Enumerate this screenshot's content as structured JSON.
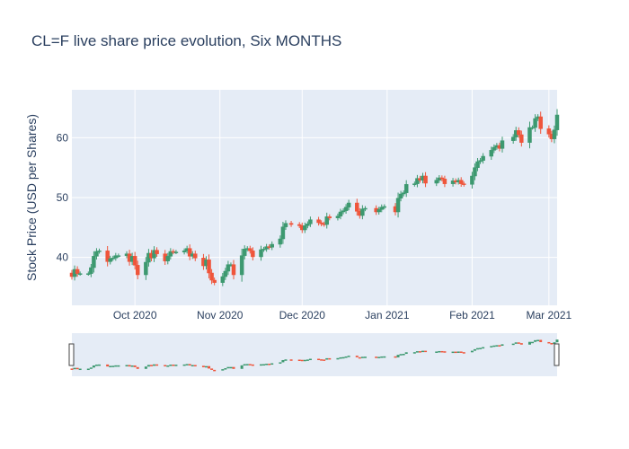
{
  "chart_data": {
    "type": "candlestick",
    "title": "CL=F live share price evolution, Six MONTHS",
    "xlabel": "",
    "ylabel": "Stock Price (USD per Shares)",
    "x_ticks": [
      "Oct 2020",
      "Nov 2020",
      "Dec 2020",
      "Jan 2021",
      "Feb 2021",
      "Mar 2021"
    ],
    "x_tick_dates": [
      "2020-10-01",
      "2020-11-01",
      "2020-12-01",
      "2021-01-01",
      "2021-02-01",
      "2021-03-01"
    ],
    "xlim": [
      "2020-09-08",
      "2021-03-04"
    ],
    "y_ticks": [
      40,
      50,
      60
    ],
    "ylim": [
      32,
      68
    ],
    "grid": true,
    "rangeslider": true,
    "colors": {
      "increasing": "#3d9970",
      "decreasing": "#ef553b",
      "plot_bg": "#e5ecf6",
      "grid": "#ffffff"
    },
    "dates": [
      "2020-09-08",
      "2020-09-09",
      "2020-09-10",
      "2020-09-11",
      "2020-09-14",
      "2020-09-15",
      "2020-09-16",
      "2020-09-17",
      "2020-09-18",
      "2020-09-21",
      "2020-09-22",
      "2020-09-23",
      "2020-09-24",
      "2020-09-25",
      "2020-09-28",
      "2020-09-29",
      "2020-09-30",
      "2020-10-01",
      "2020-10-02",
      "2020-10-05",
      "2020-10-06",
      "2020-10-07",
      "2020-10-08",
      "2020-10-09",
      "2020-10-12",
      "2020-10-13",
      "2020-10-14",
      "2020-10-15",
      "2020-10-16",
      "2020-10-19",
      "2020-10-20",
      "2020-10-21",
      "2020-10-22",
      "2020-10-23",
      "2020-10-26",
      "2020-10-27",
      "2020-10-28",
      "2020-10-29",
      "2020-10-30",
      "2020-11-02",
      "2020-11-03",
      "2020-11-04",
      "2020-11-05",
      "2020-11-06",
      "2020-11-09",
      "2020-11-10",
      "2020-11-11",
      "2020-11-12",
      "2020-11-13",
      "2020-11-16",
      "2020-11-17",
      "2020-11-18",
      "2020-11-19",
      "2020-11-20",
      "2020-11-23",
      "2020-11-24",
      "2020-11-25",
      "2020-11-27",
      "2020-11-30",
      "2020-12-01",
      "2020-12-02",
      "2020-12-03",
      "2020-12-04",
      "2020-12-07",
      "2020-12-08",
      "2020-12-09",
      "2020-12-10",
      "2020-12-11",
      "2020-12-14",
      "2020-12-15",
      "2020-12-16",
      "2020-12-17",
      "2020-12-18",
      "2020-12-21",
      "2020-12-22",
      "2020-12-23",
      "2020-12-24",
      "2020-12-28",
      "2020-12-29",
      "2020-12-30",
      "2020-12-31",
      "2021-01-04",
      "2021-01-05",
      "2021-01-06",
      "2021-01-07",
      "2021-01-08",
      "2021-01-11",
      "2021-01-12",
      "2021-01-13",
      "2021-01-14",
      "2021-01-15",
      "2021-01-19",
      "2021-01-20",
      "2021-01-21",
      "2021-01-22",
      "2021-01-25",
      "2021-01-26",
      "2021-01-27",
      "2021-01-28",
      "2021-01-29",
      "2021-02-01",
      "2021-02-02",
      "2021-02-03",
      "2021-02-04",
      "2021-02-05",
      "2021-02-08",
      "2021-02-09",
      "2021-02-10",
      "2021-02-11",
      "2021-02-12",
      "2021-02-16",
      "2021-02-17",
      "2021-02-18",
      "2021-02-19",
      "2021-02-22",
      "2021-02-23",
      "2021-02-24",
      "2021-02-25",
      "2021-02-26",
      "2021-03-01",
      "2021-03-02",
      "2021-03-03",
      "2021-03-04"
    ],
    "close": [
      36.8,
      38.0,
      37.3,
      37.3,
      37.3,
      38.3,
      40.2,
      41.0,
      41.1,
      39.3,
      39.8,
      39.9,
      40.3,
      40.3,
      40.6,
      39.3,
      40.2,
      38.7,
      37.1,
      39.2,
      40.7,
      39.9,
      41.2,
      40.6,
      39.4,
      40.2,
      41.0,
      40.9,
      40.9,
      41.1,
      41.5,
      40.2,
      40.6,
      39.9,
      38.6,
      39.6,
      37.4,
      36.2,
      35.8,
      36.8,
      37.7,
      38.8,
      38.8,
      37.1,
      40.3,
      41.4,
      41.5,
      41.1,
      40.1,
      41.3,
      41.4,
      41.8,
      41.7,
      42.2,
      43.1,
      45.1,
      45.7,
      45.5,
      45.3,
      44.6,
      45.3,
      45.6,
      46.3,
      45.8,
      45.6,
      45.5,
      46.8,
      46.6,
      46.9,
      47.6,
      47.8,
      48.4,
      49.1,
      47.7,
      47.0,
      48.1,
      48.2,
      47.6,
      48.0,
      48.4,
      48.5,
      47.6,
      49.9,
      50.6,
      50.8,
      52.2,
      52.3,
      53.2,
      52.9,
      53.6,
      52.4,
      52.9,
      53.3,
      53.1,
      52.3,
      52.8,
      52.6,
      52.9,
      52.3,
      52.2,
      53.6,
      55.0,
      56.0,
      56.2,
      56.9,
      57.9,
      58.4,
      58.7,
      58.2,
      59.5,
      60.1,
      61.2,
      60.5,
      59.2,
      61.7,
      61.7,
      63.2,
      63.5,
      61.5,
      60.6,
      59.8,
      61.3,
      63.8
    ]
  }
}
